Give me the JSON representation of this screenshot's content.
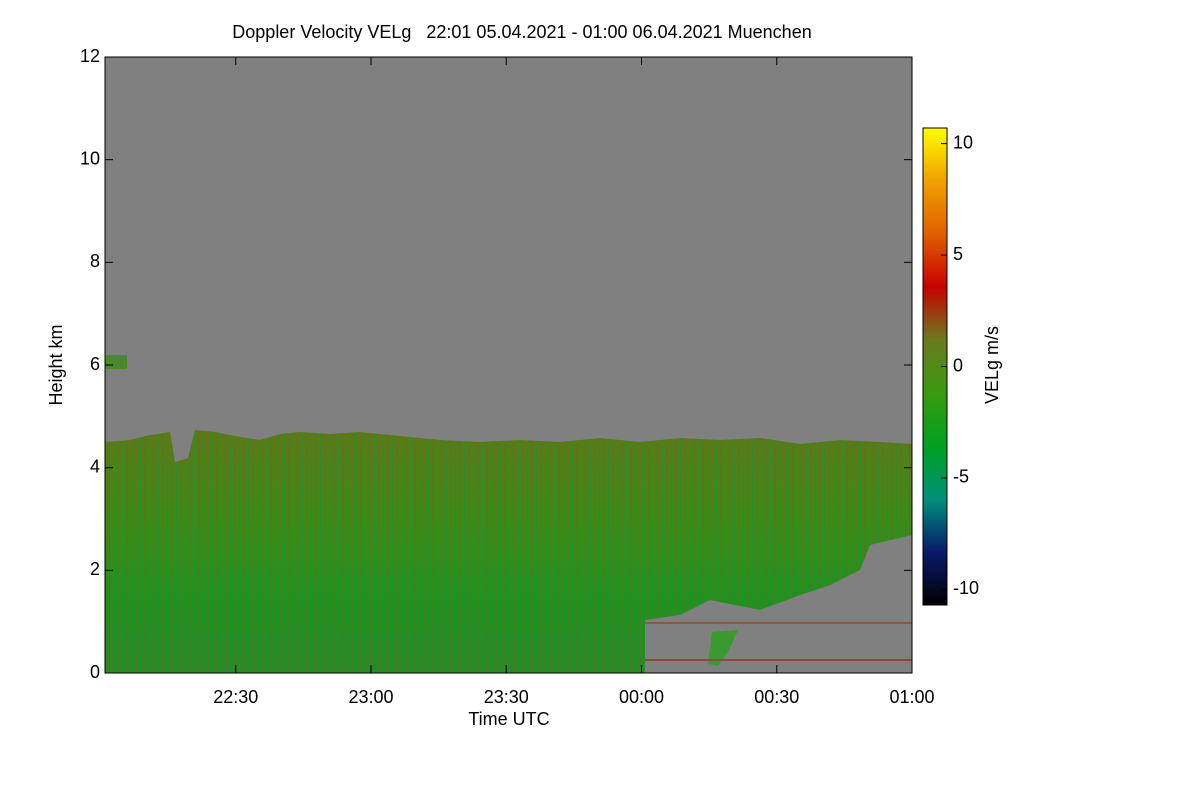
{
  "chart_data": {
    "type": "heatmap",
    "title": "Doppler Velocity VELg   22:01 05.04.2021 - 01:00 06.04.2021 Muenchen",
    "xlabel": "Time UTC",
    "ylabel": "Height km",
    "xlim": [
      1,
      180
    ],
    "xticks": [
      {
        "value": 30,
        "label": "22:30"
      },
      {
        "value": 60,
        "label": "23:00"
      },
      {
        "value": 90,
        "label": "23:30"
      },
      {
        "value": 120,
        "label": "00:00"
      },
      {
        "value": 150,
        "label": "00:30"
      },
      {
        "value": 180,
        "label": "01:00"
      }
    ],
    "ylim": [
      0,
      12
    ],
    "yticks": [
      0,
      2,
      4,
      6,
      8,
      10,
      12
    ],
    "colorbar": {
      "label": "VELg m/s",
      "lim": [
        -10.7,
        10.7
      ],
      "ticks": [
        -10,
        -5,
        0,
        5,
        10
      ],
      "colormap": [
        "#000000",
        "#0a1a6a",
        "#00907a",
        "#00a020",
        "#3a9a10",
        "#6a7a20",
        "#c80000",
        "#e06000",
        "#f0a000",
        "#ffff00"
      ]
    }
  }
}
